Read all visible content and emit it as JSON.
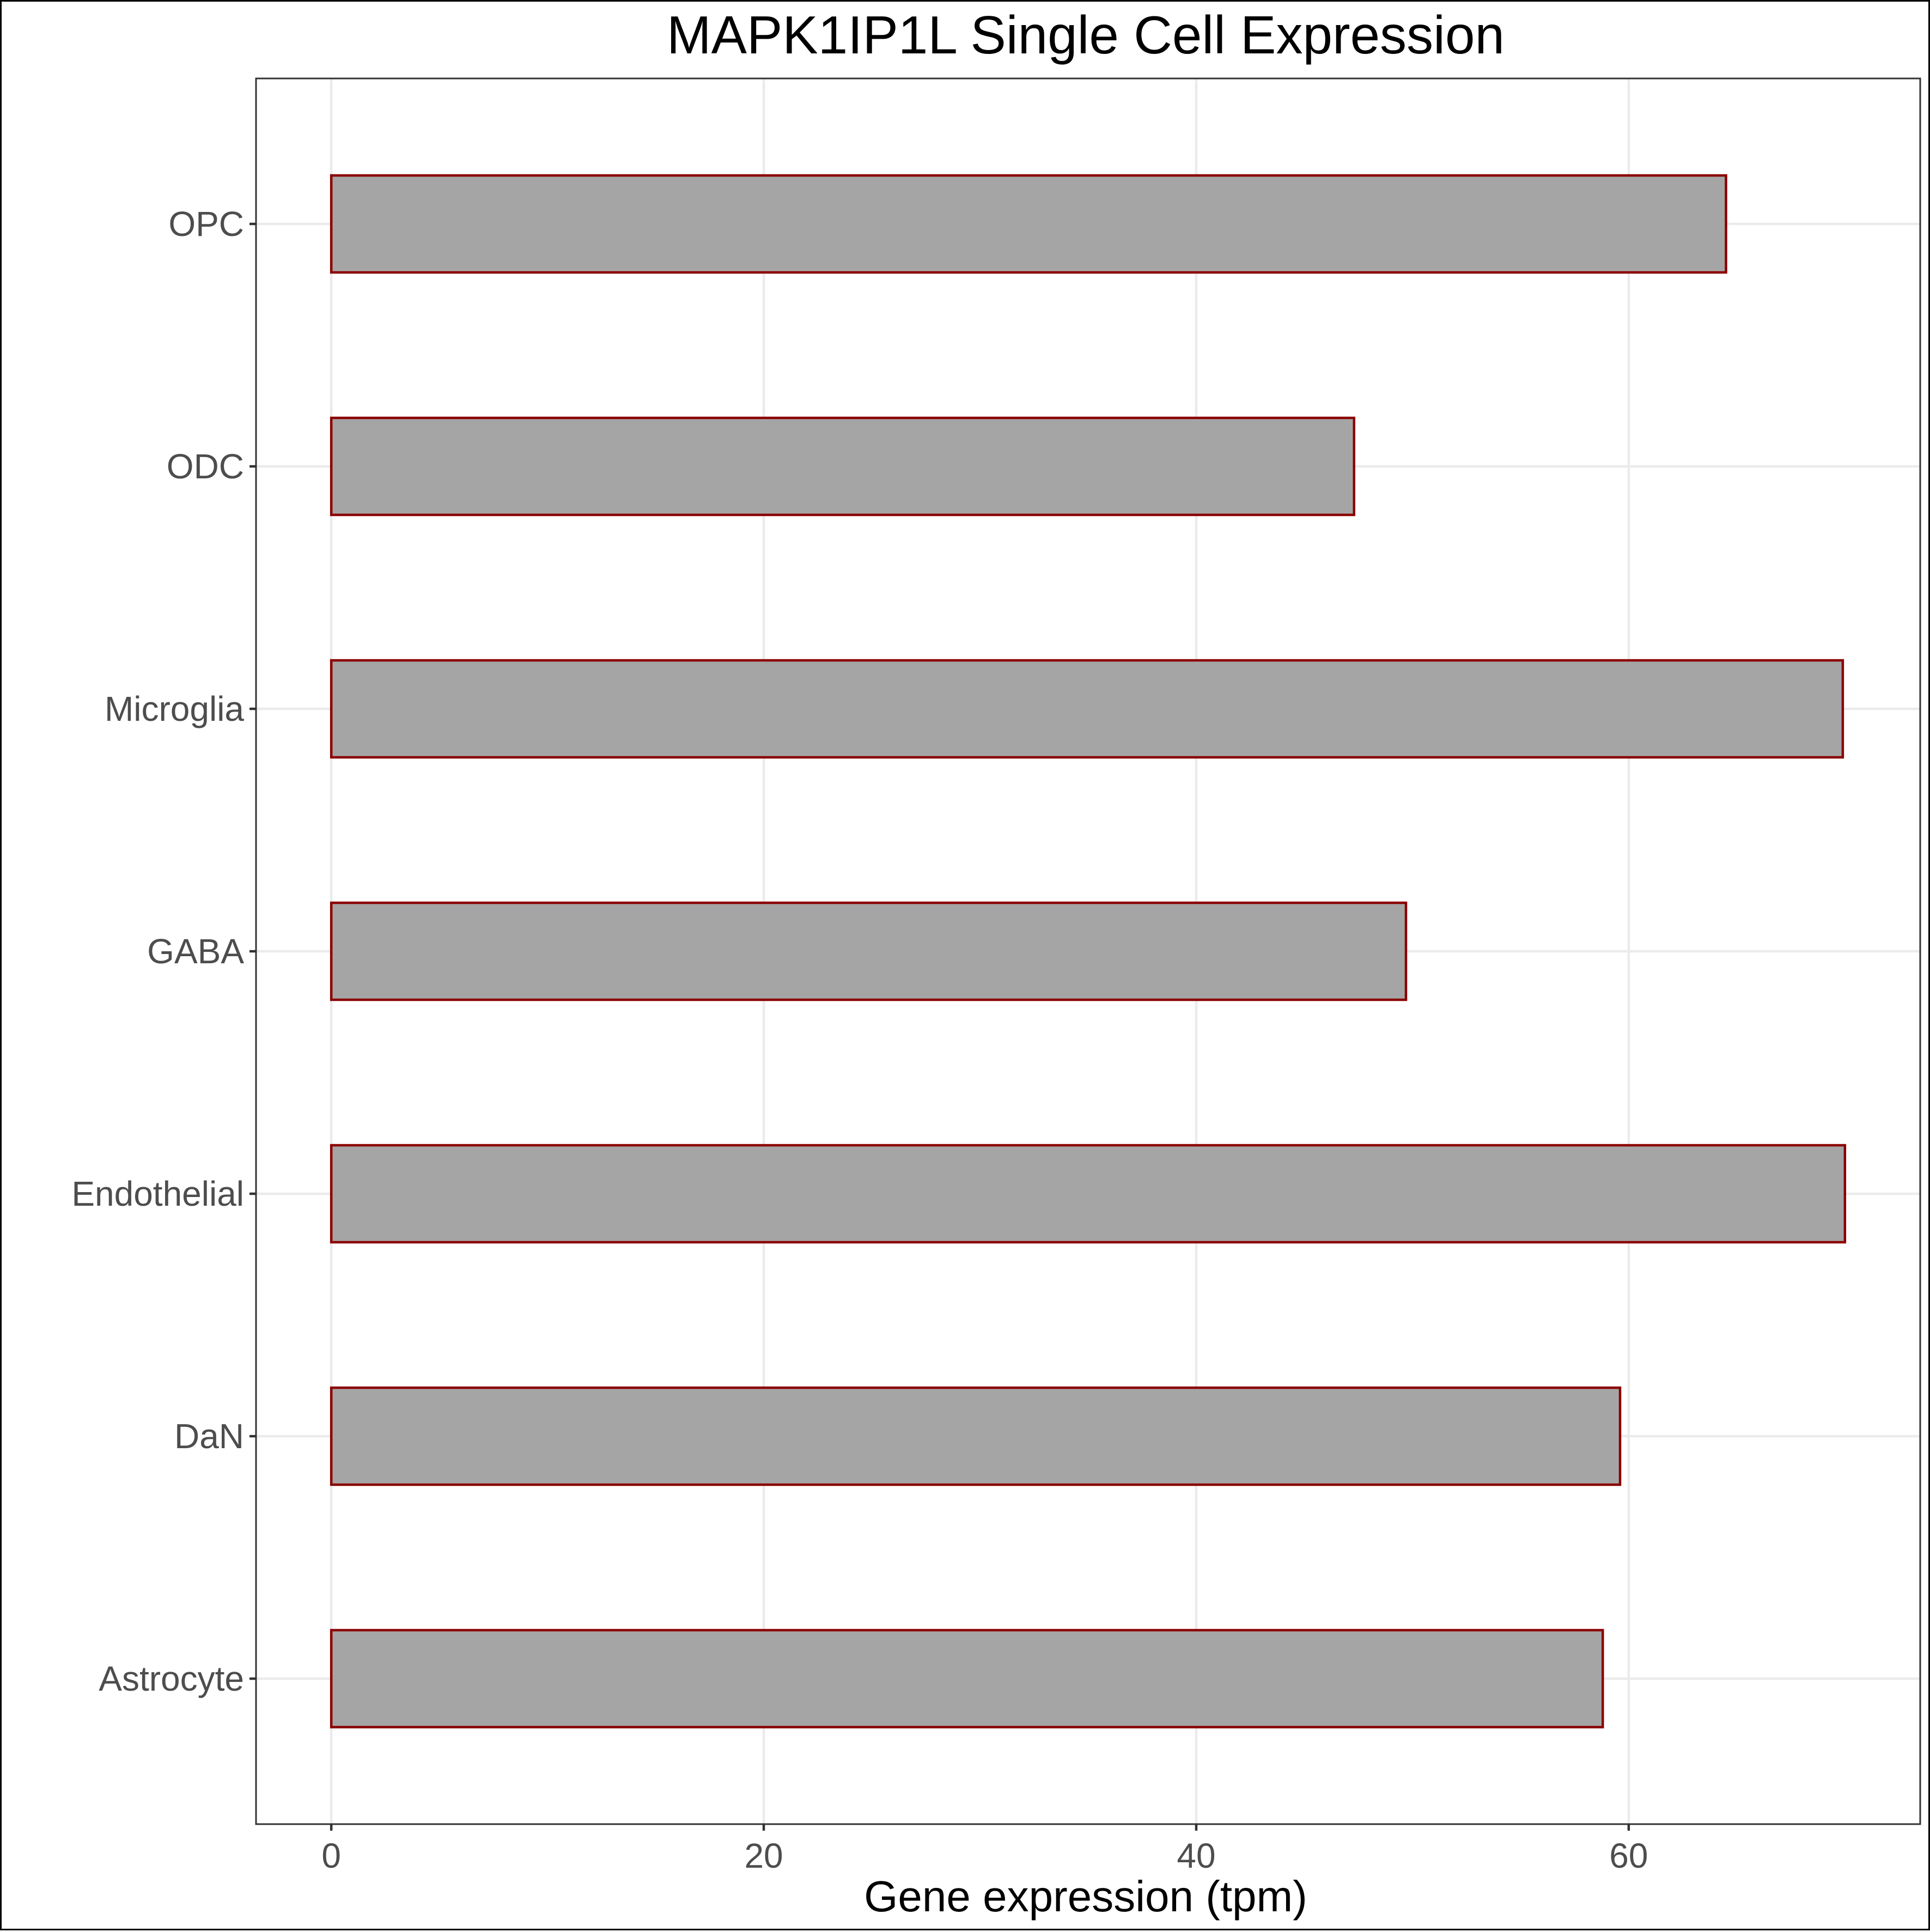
{
  "chart_data": {
    "type": "bar",
    "orientation": "horizontal",
    "title": "MAPK1IP1L Single Cell Expression",
    "xlabel": "Gene expression (tpm)",
    "ylabel": "",
    "categories": [
      "Astrocyte",
      "DaN",
      "Endothelial",
      "GABA",
      "Microglia",
      "ODC",
      "OPC"
    ],
    "values": [
      58.8,
      59.6,
      70.0,
      49.7,
      69.9,
      47.3,
      64.5
    ],
    "xlim": [
      -3.48,
      73.48
    ],
    "xticks": [
      0,
      20,
      40,
      60
    ],
    "xtick_labels": [
      "0",
      "20",
      "40",
      "60"
    ],
    "grid": true,
    "legend": "none",
    "bar_fill": "#a5a5a5",
    "bar_outline": "#8b0000"
  }
}
